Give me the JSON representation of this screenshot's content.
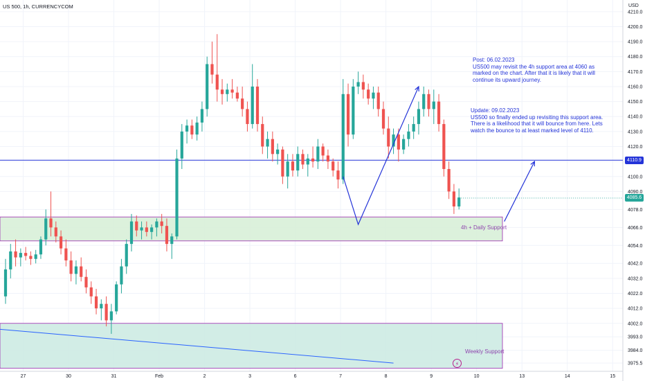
{
  "header": {
    "title": "US 500, 1h, CURRENCYCOM",
    "currency": "USD"
  },
  "colors": {
    "up": "#26a69a",
    "down": "#ef5350",
    "annotation": "#2434d8",
    "zone_fill_4h": "#d8efd8",
    "zone_fill_weekly": "#cdebe3",
    "zone_border": "#9c27b0",
    "badge_current": "#26a69a",
    "badge_level": "#2434d8"
  },
  "annotations": {
    "post": "Post: 06.02.2023\nUS500 may revisit the 4h support area at 4060 as\nmarked on the chart. After that it is likely that it will\ncontinue its upward journey.",
    "update": "Update: 09.02.2023\nUS500 so finally ended up revisiting this support area.\nThere is a likelihood that it will bounce from here. Lets\nwatch the bounce to at least marked level of 4110.",
    "zone_4h_label": "4h + Daily Support",
    "zone_weekly_label": "Weekly Support",
    "badge_level": "4110.9",
    "badge_current": "4085.6",
    "bolt_icon": "⚡"
  },
  "chart_data": {
    "type": "candlestick",
    "timeframe": "1h",
    "ylim": [
      3970,
      4215
    ],
    "y_ticks": [
      "4210.0",
      "4200.0",
      "4190.0",
      "4180.0",
      "4170.0",
      "4160.0",
      "4150.0",
      "4140.0",
      "4130.0",
      "4120.0",
      "4110.0",
      "4100.0",
      "4090.0",
      "4078.0",
      "4066.0",
      "4054.0",
      "4042.0",
      "4032.0",
      "4022.0",
      "4012.0",
      "4002.0",
      "3993.0",
      "3984.0",
      "3975.5"
    ],
    "x_ticks": [
      "27",
      "30",
      "31",
      "Feb",
      "2",
      "3",
      "6",
      "7",
      "8",
      "9",
      "10",
      "13",
      "14",
      "15"
    ],
    "horizontal_line": 4110.9,
    "current_price": 4085.6,
    "zones": [
      {
        "name": "4h + Daily Support",
        "from": 4057,
        "to": 4073
      },
      {
        "name": "Weekly Support",
        "from": 3972,
        "to": 4002
      }
    ],
    "trendline": [
      [
        0,
        3998
      ],
      [
        7.7,
        3975.5
      ]
    ],
    "projection_arrows": [
      [
        [
          6.7,
          4100
        ],
        [
          7.0,
          4068
        ],
        [
          8.2,
          4160
        ]
      ],
      [
        [
          9.9,
          4070
        ],
        [
          10.5,
          4110
        ]
      ]
    ],
    "candles": [
      {
        "x": 0.0,
        "o": 4020,
        "h": 4045,
        "l": 4015,
        "c": 4038
      },
      {
        "x": 0.1,
        "o": 4038,
        "h": 4055,
        "l": 4032,
        "c": 4050
      },
      {
        "x": 0.2,
        "o": 4050,
        "h": 4058,
        "l": 4040,
        "c": 4046
      },
      {
        "x": 0.3,
        "o": 4046,
        "h": 4052,
        "l": 4040,
        "c": 4049
      },
      {
        "x": 0.4,
        "o": 4049,
        "h": 4053,
        "l": 4044,
        "c": 4047
      },
      {
        "x": 0.5,
        "o": 4047,
        "h": 4050,
        "l": 4041,
        "c": 4045
      },
      {
        "x": 0.6,
        "o": 4045,
        "h": 4051,
        "l": 4042,
        "c": 4048
      },
      {
        "x": 0.7,
        "o": 4048,
        "h": 4060,
        "l": 4045,
        "c": 4058
      },
      {
        "x": 0.8,
        "o": 4058,
        "h": 4078,
        "l": 4054,
        "c": 4072
      },
      {
        "x": 0.9,
        "o": 4072,
        "h": 4090,
        "l": 4060,
        "c": 4066
      },
      {
        "x": 1.0,
        "o": 4066,
        "h": 4070,
        "l": 4056,
        "c": 4060
      },
      {
        "x": 1.1,
        "o": 4060,
        "h": 4064,
        "l": 4048,
        "c": 4052
      },
      {
        "x": 1.2,
        "o": 4052,
        "h": 4058,
        "l": 4040,
        "c": 4044
      },
      {
        "x": 1.3,
        "o": 4044,
        "h": 4050,
        "l": 4030,
        "c": 4035
      },
      {
        "x": 1.4,
        "o": 4035,
        "h": 4044,
        "l": 4028,
        "c": 4040
      },
      {
        "x": 1.5,
        "o": 4040,
        "h": 4046,
        "l": 4030,
        "c": 4033
      },
      {
        "x": 1.6,
        "o": 4033,
        "h": 4038,
        "l": 4022,
        "c": 4026
      },
      {
        "x": 1.7,
        "o": 4026,
        "h": 4030,
        "l": 4015,
        "c": 4020
      },
      {
        "x": 1.8,
        "o": 4020,
        "h": 4025,
        "l": 4008,
        "c": 4012
      },
      {
        "x": 1.9,
        "o": 4012,
        "h": 4018,
        "l": 4004,
        "c": 4015
      },
      {
        "x": 2.0,
        "o": 4015,
        "h": 4020,
        "l": 4000,
        "c": 4004
      },
      {
        "x": 2.1,
        "o": 4004,
        "h": 4015,
        "l": 3995,
        "c": 4010
      },
      {
        "x": 2.2,
        "o": 4010,
        "h": 4030,
        "l": 4008,
        "c": 4028
      },
      {
        "x": 2.3,
        "o": 4028,
        "h": 4045,
        "l": 4022,
        "c": 4040
      },
      {
        "x": 2.4,
        "o": 4040,
        "h": 4058,
        "l": 4035,
        "c": 4055
      },
      {
        "x": 2.5,
        "o": 4055,
        "h": 4075,
        "l": 4050,
        "c": 4070
      },
      {
        "x": 2.6,
        "o": 4070,
        "h": 4074,
        "l": 4060,
        "c": 4064
      },
      {
        "x": 2.7,
        "o": 4064,
        "h": 4070,
        "l": 4058,
        "c": 4066
      },
      {
        "x": 2.8,
        "o": 4066,
        "h": 4070,
        "l": 4060,
        "c": 4063
      },
      {
        "x": 2.9,
        "o": 4063,
        "h": 4068,
        "l": 4058,
        "c": 4066
      },
      {
        "x": 3.0,
        "o": 4066,
        "h": 4072,
        "l": 4060,
        "c": 4070
      },
      {
        "x": 3.1,
        "o": 4070,
        "h": 4075,
        "l": 4062,
        "c": 4067
      },
      {
        "x": 3.2,
        "o": 4067,
        "h": 4072,
        "l": 4050,
        "c": 4055
      },
      {
        "x": 3.3,
        "o": 4055,
        "h": 4062,
        "l": 4045,
        "c": 4060
      },
      {
        "x": 3.4,
        "o": 4060,
        "h": 4118,
        "l": 4058,
        "c": 4112
      },
      {
        "x": 3.5,
        "o": 4112,
        "h": 4135,
        "l": 4105,
        "c": 4130
      },
      {
        "x": 3.6,
        "o": 4130,
        "h": 4138,
        "l": 4122,
        "c": 4134
      },
      {
        "x": 3.7,
        "o": 4134,
        "h": 4138,
        "l": 4125,
        "c": 4128
      },
      {
        "x": 3.8,
        "o": 4128,
        "h": 4140,
        "l": 4124,
        "c": 4136
      },
      {
        "x": 3.9,
        "o": 4136,
        "h": 4150,
        "l": 4130,
        "c": 4145
      },
      {
        "x": 4.0,
        "o": 4145,
        "h": 4180,
        "l": 4140,
        "c": 4175
      },
      {
        "x": 4.1,
        "o": 4175,
        "h": 4190,
        "l": 4162,
        "c": 4168
      },
      {
        "x": 4.2,
        "o": 4168,
        "h": 4195,
        "l": 4150,
        "c": 4158
      },
      {
        "x": 4.3,
        "o": 4158,
        "h": 4165,
        "l": 4148,
        "c": 4155
      },
      {
        "x": 4.4,
        "o": 4155,
        "h": 4162,
        "l": 4150,
        "c": 4158
      },
      {
        "x": 4.5,
        "o": 4158,
        "h": 4165,
        "l": 4152,
        "c": 4156
      },
      {
        "x": 4.6,
        "o": 4156,
        "h": 4160,
        "l": 4150,
        "c": 4152
      },
      {
        "x": 4.7,
        "o": 4152,
        "h": 4160,
        "l": 4140,
        "c": 4145
      },
      {
        "x": 4.8,
        "o": 4145,
        "h": 4150,
        "l": 4130,
        "c": 4135
      },
      {
        "x": 4.9,
        "o": 4135,
        "h": 4175,
        "l": 4132,
        "c": 4160
      },
      {
        "x": 5.0,
        "o": 4160,
        "h": 4165,
        "l": 4130,
        "c": 4135
      },
      {
        "x": 5.1,
        "o": 4135,
        "h": 4140,
        "l": 4115,
        "c": 4120
      },
      {
        "x": 5.2,
        "o": 4120,
        "h": 4130,
        "l": 4112,
        "c": 4125
      },
      {
        "x": 5.3,
        "o": 4125,
        "h": 4130,
        "l": 4110,
        "c": 4115
      },
      {
        "x": 5.4,
        "o": 4115,
        "h": 4122,
        "l": 4108,
        "c": 4118
      },
      {
        "x": 5.5,
        "o": 4118,
        "h": 4120,
        "l": 4095,
        "c": 4100
      },
      {
        "x": 5.6,
        "o": 4100,
        "h": 4115,
        "l": 4092,
        "c": 4110
      },
      {
        "x": 5.7,
        "o": 4110,
        "h": 4115,
        "l": 4100,
        "c": 4104
      },
      {
        "x": 5.8,
        "o": 4104,
        "h": 4120,
        "l": 4100,
        "c": 4115
      },
      {
        "x": 5.9,
        "o": 4115,
        "h": 4118,
        "l": 4105,
        "c": 4108
      },
      {
        "x": 6.0,
        "o": 4108,
        "h": 4115,
        "l": 4100,
        "c": 4112
      },
      {
        "x": 6.1,
        "o": 4112,
        "h": 4120,
        "l": 4106,
        "c": 4110
      },
      {
        "x": 6.2,
        "o": 4110,
        "h": 4125,
        "l": 4105,
        "c": 4120
      },
      {
        "x": 6.3,
        "o": 4120,
        "h": 4122,
        "l": 4110,
        "c": 4114
      },
      {
        "x": 6.4,
        "o": 4114,
        "h": 4118,
        "l": 4105,
        "c": 4110
      },
      {
        "x": 6.5,
        "o": 4110,
        "h": 4112,
        "l": 4100,
        "c": 4104
      },
      {
        "x": 6.6,
        "o": 4104,
        "h": 4110,
        "l": 4092,
        "c": 4098
      },
      {
        "x": 6.7,
        "o": 4098,
        "h": 4165,
        "l": 4095,
        "c": 4155
      },
      {
        "x": 6.8,
        "o": 4155,
        "h": 4162,
        "l": 4120,
        "c": 4128
      },
      {
        "x": 6.9,
        "o": 4128,
        "h": 4165,
        "l": 4125,
        "c": 4160
      },
      {
        "x": 7.0,
        "o": 4160,
        "h": 4170,
        "l": 4155,
        "c": 4163
      },
      {
        "x": 7.1,
        "o": 4163,
        "h": 4168,
        "l": 4152,
        "c": 4158
      },
      {
        "x": 7.2,
        "o": 4158,
        "h": 4162,
        "l": 4148,
        "c": 4152
      },
      {
        "x": 7.3,
        "o": 4152,
        "h": 4160,
        "l": 4145,
        "c": 4156
      },
      {
        "x": 7.4,
        "o": 4156,
        "h": 4160,
        "l": 4140,
        "c": 4145
      },
      {
        "x": 7.5,
        "o": 4145,
        "h": 4150,
        "l": 4128,
        "c": 4132
      },
      {
        "x": 7.6,
        "o": 4132,
        "h": 4140,
        "l": 4112,
        "c": 4120
      },
      {
        "x": 7.7,
        "o": 4120,
        "h": 4132,
        "l": 4115,
        "c": 4128
      },
      {
        "x": 7.8,
        "o": 4128,
        "h": 4132,
        "l": 4110,
        "c": 4118
      },
      {
        "x": 7.9,
        "o": 4118,
        "h": 4128,
        "l": 4115,
        "c": 4125
      },
      {
        "x": 8.0,
        "o": 4125,
        "h": 4135,
        "l": 4120,
        "c": 4130
      },
      {
        "x": 8.1,
        "o": 4130,
        "h": 4140,
        "l": 4125,
        "c": 4135
      },
      {
        "x": 8.2,
        "o": 4135,
        "h": 4150,
        "l": 4128,
        "c": 4145
      },
      {
        "x": 8.3,
        "o": 4145,
        "h": 4160,
        "l": 4140,
        "c": 4155
      },
      {
        "x": 8.4,
        "o": 4155,
        "h": 4158,
        "l": 4140,
        "c": 4145
      },
      {
        "x": 8.5,
        "o": 4145,
        "h": 4158,
        "l": 4135,
        "c": 4150
      },
      {
        "x": 8.6,
        "o": 4150,
        "h": 4155,
        "l": 4130,
        "c": 4135
      },
      {
        "x": 8.7,
        "o": 4135,
        "h": 4138,
        "l": 4100,
        "c": 4105
      },
      {
        "x": 8.8,
        "o": 4105,
        "h": 4110,
        "l": 4085,
        "c": 4090
      },
      {
        "x": 8.9,
        "o": 4090,
        "h": 4095,
        "l": 4075,
        "c": 4080
      },
      {
        "x": 9.0,
        "o": 4080,
        "h": 4092,
        "l": 4078,
        "c": 4086
      }
    ]
  }
}
